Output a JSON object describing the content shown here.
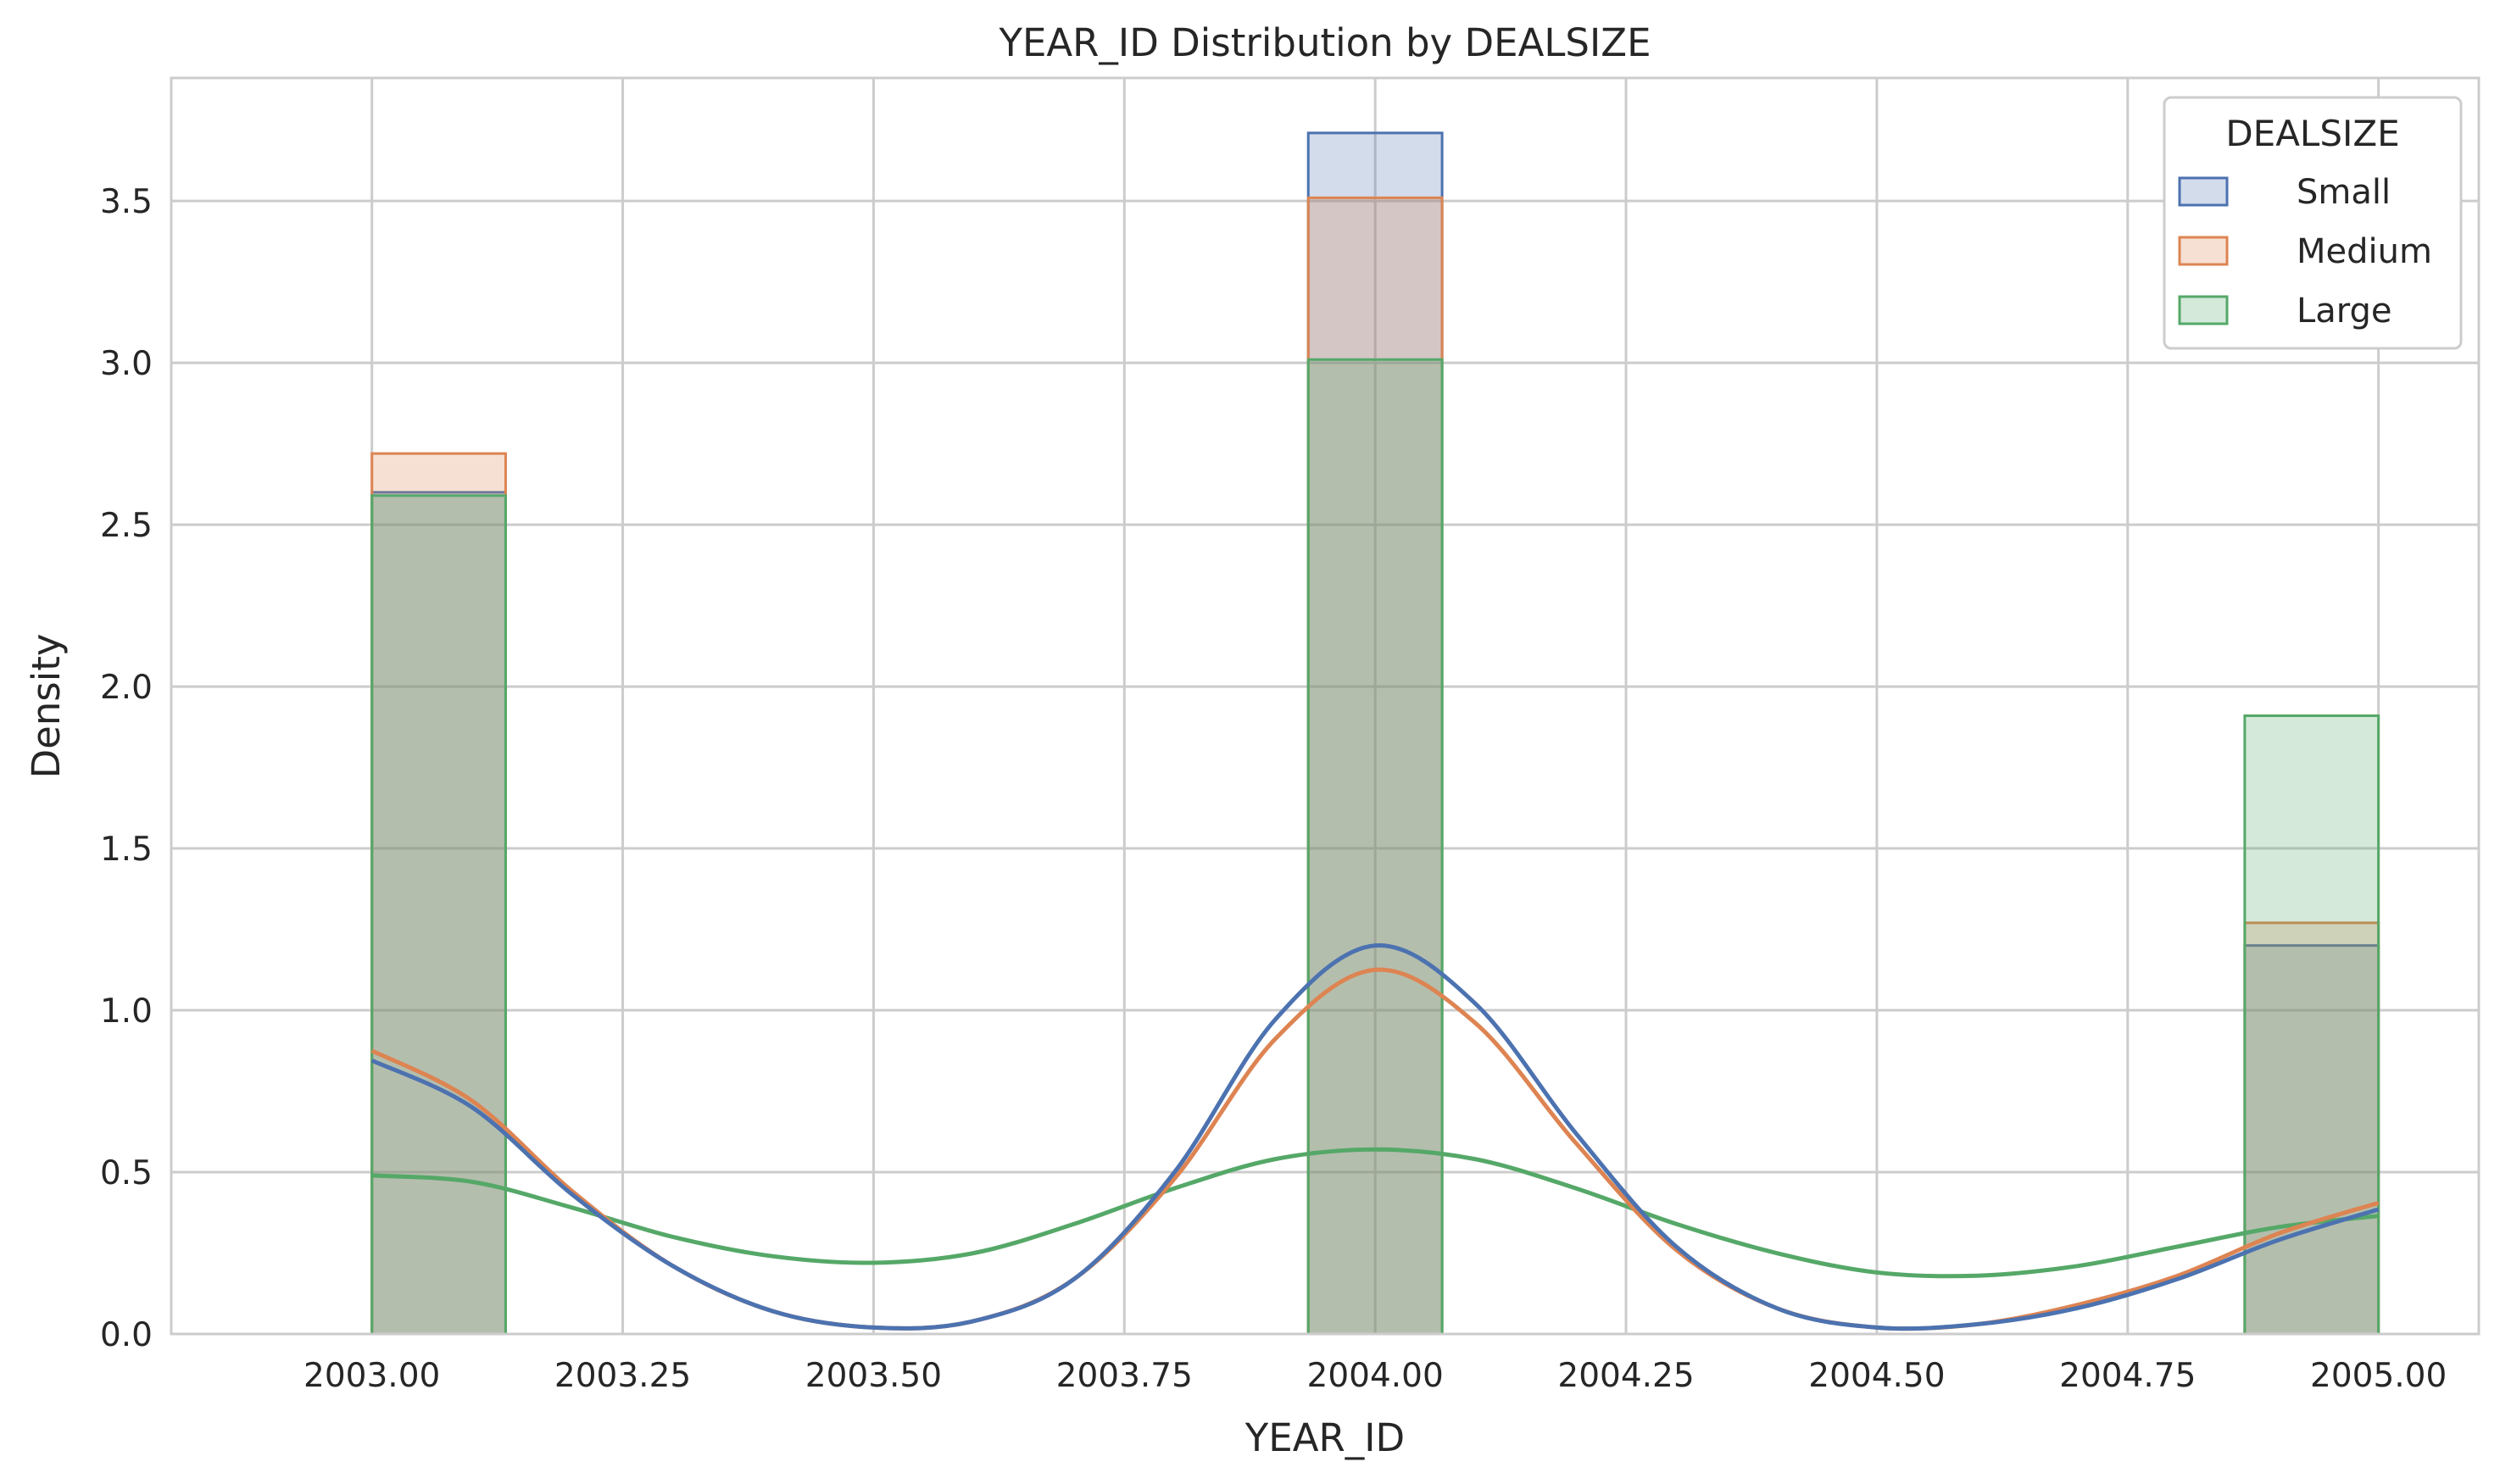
{
  "chart_data": {
    "type": "histogram",
    "title": "YEAR_ID Distribution by DEALSIZE",
    "xlabel": "YEAR_ID",
    "ylabel": "Density",
    "xlim": [
      2002.8,
      2005.1
    ],
    "ylim": [
      0,
      3.88
    ],
    "xticks": [
      2003.0,
      2003.25,
      2003.5,
      2003.75,
      2004.0,
      2004.25,
      2004.5,
      2004.75,
      2005.0
    ],
    "xtick_labels": [
      "2003.00",
      "2003.25",
      "2003.50",
      "2003.75",
      "2004.00",
      "2004.25",
      "2004.50",
      "2004.75",
      "2005.00"
    ],
    "yticks": [
      0,
      0.5,
      1.0,
      1.5,
      2.0,
      2.5,
      3.0,
      3.5
    ],
    "ytick_labels": [
      "0.0",
      "0.5",
      "1.0",
      "1.5",
      "2.0",
      "2.5",
      "3.0",
      "3.5"
    ],
    "grid": true,
    "bins": [
      [
        2003.0,
        2003.1333
      ],
      [
        2003.9333,
        2004.0667
      ],
      [
        2004.8667,
        2005.0
      ]
    ],
    "legend": {
      "title": "DEALSIZE",
      "position": "upper right"
    },
    "series": [
      {
        "name": "Small",
        "color": "#4c72b0",
        "bin_values": [
          2.6,
          3.71,
          1.2
        ],
        "kde": [
          [
            2003.0,
            0.845
          ],
          [
            2003.1,
            0.7
          ],
          [
            2003.2,
            0.43
          ],
          [
            2003.3,
            0.21
          ],
          [
            2003.4,
            0.07
          ],
          [
            2003.5,
            0.02
          ],
          [
            2003.6,
            0.04
          ],
          [
            2003.7,
            0.17
          ],
          [
            2003.8,
            0.5
          ],
          [
            2003.9,
            0.97
          ],
          [
            2004.0,
            1.2
          ],
          [
            2004.1,
            1.02
          ],
          [
            2004.2,
            0.62
          ],
          [
            2004.3,
            0.27
          ],
          [
            2004.4,
            0.08
          ],
          [
            2004.5,
            0.02
          ],
          [
            2004.6,
            0.03
          ],
          [
            2004.7,
            0.08
          ],
          [
            2004.8,
            0.17
          ],
          [
            2004.9,
            0.29
          ],
          [
            2005.0,
            0.385
          ]
        ]
      },
      {
        "name": "Medium",
        "color": "#dd8452",
        "bin_values": [
          2.72,
          3.51,
          1.27
        ],
        "kde": [
          [
            2003.0,
            0.875
          ],
          [
            2003.1,
            0.72
          ],
          [
            2003.2,
            0.44
          ],
          [
            2003.3,
            0.21
          ],
          [
            2003.4,
            0.07
          ],
          [
            2003.5,
            0.02
          ],
          [
            2003.6,
            0.04
          ],
          [
            2003.7,
            0.17
          ],
          [
            2003.8,
            0.48
          ],
          [
            2003.9,
            0.91
          ],
          [
            2004.0,
            1.125
          ],
          [
            2004.1,
            0.96
          ],
          [
            2004.2,
            0.59
          ],
          [
            2004.3,
            0.26
          ],
          [
            2004.4,
            0.08
          ],
          [
            2004.5,
            0.02
          ],
          [
            2004.6,
            0.03
          ],
          [
            2004.7,
            0.09
          ],
          [
            2004.8,
            0.18
          ],
          [
            2004.9,
            0.31
          ],
          [
            2005.0,
            0.405
          ]
        ]
      },
      {
        "name": "Large",
        "color": "#55a868",
        "bin_values": [
          2.59,
          3.01,
          1.91
        ],
        "kde": [
          [
            2003.0,
            0.49
          ],
          [
            2003.1,
            0.47
          ],
          [
            2003.2,
            0.39
          ],
          [
            2003.3,
            0.3
          ],
          [
            2003.4,
            0.24
          ],
          [
            2003.5,
            0.22
          ],
          [
            2003.6,
            0.25
          ],
          [
            2003.7,
            0.34
          ],
          [
            2003.8,
            0.45
          ],
          [
            2003.9,
            0.54
          ],
          [
            2004.0,
            0.57
          ],
          [
            2004.1,
            0.54
          ],
          [
            2004.2,
            0.45
          ],
          [
            2004.3,
            0.34
          ],
          [
            2004.4,
            0.25
          ],
          [
            2004.5,
            0.19
          ],
          [
            2004.6,
            0.18
          ],
          [
            2004.7,
            0.21
          ],
          [
            2004.8,
            0.27
          ],
          [
            2004.9,
            0.33
          ],
          [
            2005.0,
            0.365
          ]
        ]
      }
    ]
  }
}
